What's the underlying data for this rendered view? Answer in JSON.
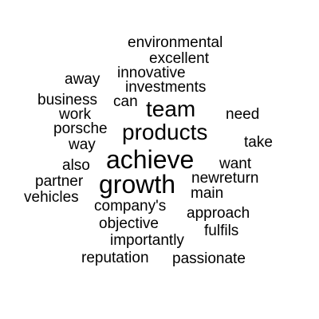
{
  "word_cloud": {
    "words": [
      "environmental",
      "excellent",
      "innovative",
      "away",
      "investments",
      "business",
      "can",
      "team",
      "work",
      "need",
      "porsche",
      "products",
      "way",
      "take",
      "achieve",
      "also",
      "want",
      "partner",
      "growth",
      "newreturn",
      "vehicles",
      "main",
      "company's",
      "approach",
      "objective",
      "fulfils",
      "importantly",
      "reputation",
      "passionate"
    ]
  }
}
